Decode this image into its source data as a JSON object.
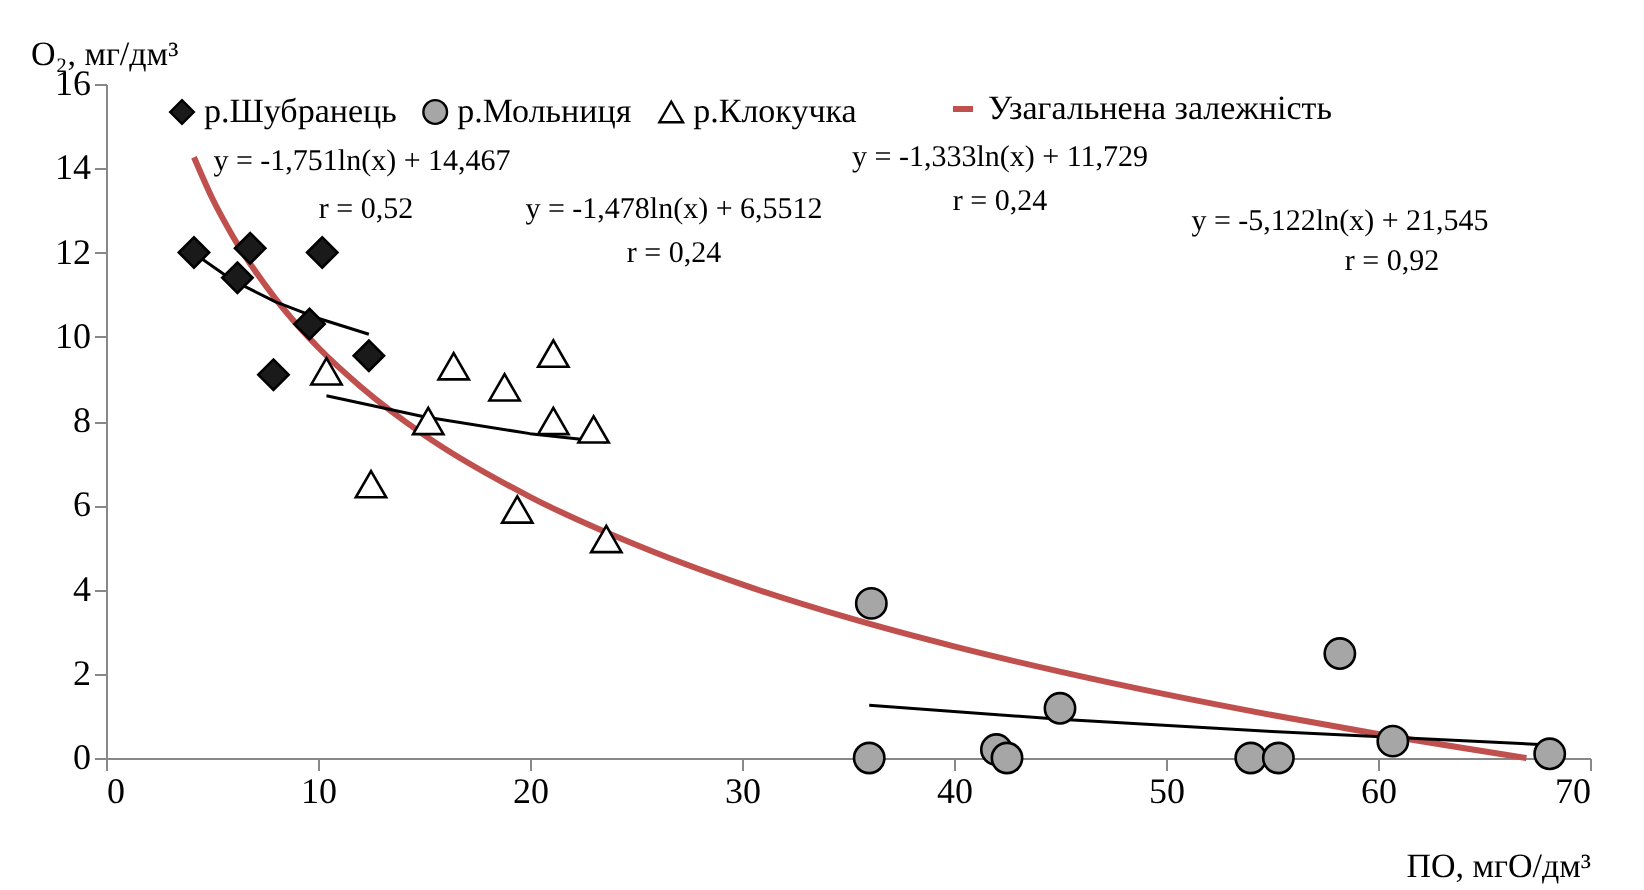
{
  "chart_data": {
    "type": "scatter",
    "xlabel": "ПО, мгО/дм³",
    "ylabel": "O₂, мг/дм³",
    "xlim": [
      0,
      70
    ],
    "xticks": [
      0,
      10,
      20,
      30,
      40,
      50,
      60,
      70
    ],
    "ylim": [
      0,
      16
    ],
    "yticks": [
      0,
      2,
      4,
      6,
      8,
      10,
      12,
      14,
      16
    ],
    "grid": false,
    "legend": "top",
    "series": [
      {
        "name": "р.Шубранець",
        "type": "scatter",
        "marker": "diamond",
        "color": "#1a1a1a",
        "x": [
          4.15,
          6.8,
          6.2,
          10.2,
          9.6,
          12.4,
          7.9
        ],
        "values": [
          12.0,
          12.1,
          11.4,
          12.0,
          10.3,
          9.55,
          9.1
        ]
      },
      {
        "name": "р.Мольниця",
        "type": "scatter",
        "marker": "circle",
        "color": "#a6a6a6",
        "x": [
          36.1,
          36.0,
          42.0,
          42.5,
          45.0,
          54.0,
          55.3,
          58.2,
          60.7,
          68.1
        ],
        "values": [
          3.67,
          0.0,
          0.2,
          0.0,
          1.18,
          0.0,
          0.0,
          2.48,
          0.4,
          0.1
        ]
      },
      {
        "name": "р.Клокучка",
        "type": "scatter",
        "marker": "triangle",
        "color": "#ffffff",
        "x": [
          10.4,
          16.4,
          18.8,
          21.1,
          15.2,
          21.1,
          23.0,
          12.5,
          19.4,
          23.6
        ],
        "values": [
          9.18,
          9.3,
          8.8,
          9.6,
          8.0,
          8.0,
          7.8,
          6.5,
          5.9,
          5.2
        ]
      },
      {
        "name": "Узагальнена залежність",
        "type": "line",
        "color": "#c0504d",
        "x": [
          4.15,
          5,
          6,
          8,
          10,
          12,
          15,
          20,
          25,
          30,
          35,
          40,
          45,
          50,
          55,
          60,
          67
        ],
        "values": [
          14.26,
          13.3,
          12.37,
          10.9,
          9.75,
          8.82,
          7.67,
          6.2,
          5.06,
          4.12,
          3.33,
          2.65,
          2.05,
          1.51,
          1.02,
          0.57,
          0.0
        ]
      },
      {
        "type": "line",
        "color": "#000000",
        "x": [
          4.15,
          6,
          8,
          10,
          12.4
        ],
        "values": [
          11.98,
          11.33,
          10.83,
          10.44,
          10.06
        ]
      },
      {
        "type": "line",
        "color": "#000000",
        "x": [
          10.4,
          15,
          20,
          23.6
        ],
        "values": [
          8.6,
          8.1,
          7.7,
          7.5
        ]
      },
      {
        "type": "line",
        "color": "#000000",
        "x": [
          36,
          45,
          55,
          68.1
        ],
        "values": [
          1.25,
          0.92,
          0.63,
          0.31
        ]
      }
    ],
    "annotations": [
      "y = -1,751ln(x) + 14,467",
      "r = 0,52",
      "y = -1,478ln(x) + 6,5512",
      "r = 0,24",
      "y = -1,333ln(x) + 11,729",
      "r = 0,24",
      "y = -5,122ln(x) + 21,545",
      "r = 0,92"
    ]
  }
}
